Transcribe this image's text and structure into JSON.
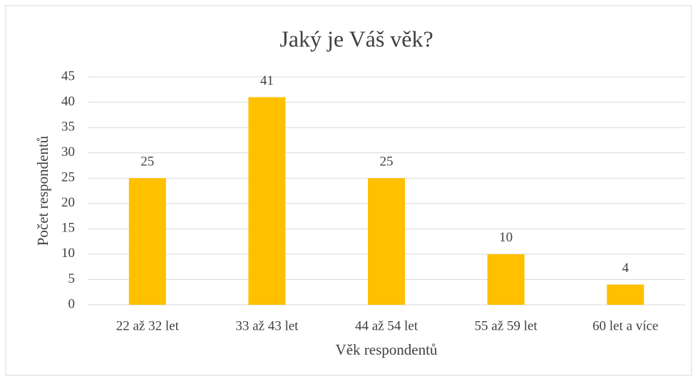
{
  "chart_data": {
    "type": "bar",
    "title": "Jaký je Váš věk?",
    "x_label": "Věk respondentů",
    "y_label": "Počet respondentů",
    "categories": [
      "22 až 32 let",
      "33 až 43 let",
      "44 až 54 let",
      "55 až 59 let",
      "60 let a více"
    ],
    "values": [
      25,
      41,
      25,
      10,
      4
    ],
    "color": "#ffc000",
    "ylim": [
      0,
      45
    ],
    "yticks": [
      0,
      5,
      10,
      15,
      20,
      25,
      30,
      35,
      40,
      45
    ],
    "grid": true
  }
}
